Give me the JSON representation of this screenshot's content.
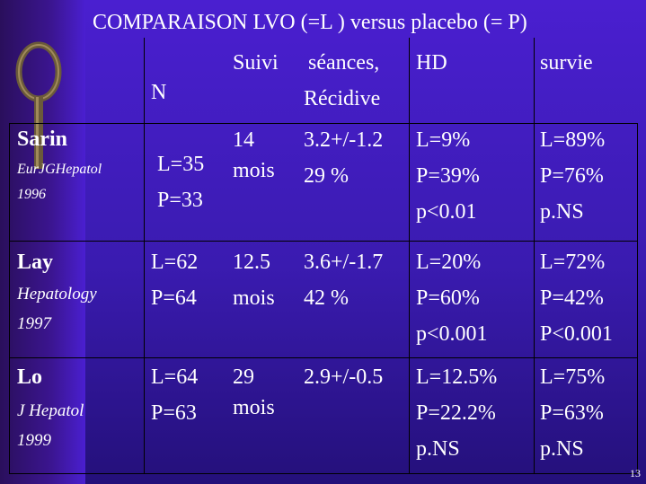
{
  "title": "COMPARAISON LVO (=L ) versus placebo (= P)",
  "header": {
    "n": "N",
    "suivi": "Suivi",
    "seances_1": "séances,",
    "seances_2": "Récidive",
    "hd": "HD",
    "survie": "survie"
  },
  "rows": [
    {
      "name": "Sarin",
      "journal": "EurJGHepatol",
      "year": "1996",
      "n_1": "L=35",
      "n_2": "P=33",
      "suivi_1": "14",
      "suivi_2": "mois",
      "seances_1": "3.2+/-1.2",
      "seances_2": "29 %",
      "hd_1": "L=9%",
      "hd_2": "P=39%",
      "hd_3": "p<0.01",
      "survie_1": "L=89%",
      "survie_2": "P=76%",
      "survie_3": "p.NS"
    },
    {
      "name": "Lay",
      "journal": "Hepatology",
      "year": "1997",
      "n_1": "L=62",
      "n_2": "P=64",
      "suivi_1": "12.5",
      "suivi_2": "mois",
      "seances_1": "3.6+/-1.7",
      "seances_2": "42 %",
      "hd_1": "L=20%",
      "hd_2": "P=60%",
      "hd_3": "p<0.001",
      "survie_1": "L=72%",
      "survie_2": "P=42%",
      "survie_3": "P<0.001"
    },
    {
      "name": "Lo",
      "journal": "J Hepatol",
      "year": "1999",
      "n_1": "L=64",
      "n_2": "P=63",
      "suivi_1": "29",
      "suivi_2": "mois",
      "seances_1": "2.9+/-0.5",
      "seances_2": "",
      "hd_1": "L=12.5%",
      "hd_2": "P=22.2%",
      "hd_3": "p.NS",
      "survie_1": "L=75%",
      "survie_2": "P=63%",
      "survie_3": "p.NS"
    }
  ],
  "page_number": "13",
  "colors": {
    "background": "#3a1bb0",
    "text": "#ffffff",
    "grid": "#000000"
  }
}
